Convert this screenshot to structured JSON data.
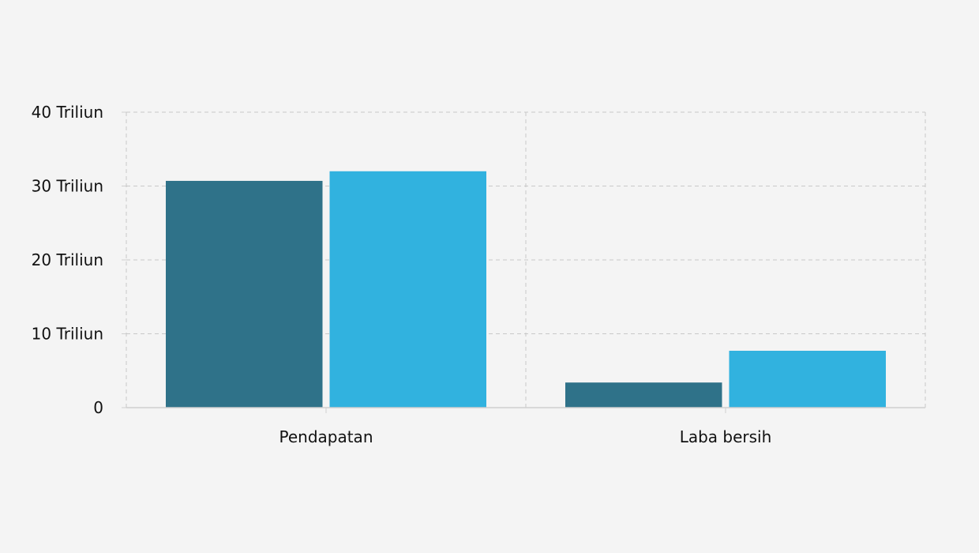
{
  "chart_data": {
    "type": "bar",
    "categories": [
      "Pendapatan",
      "Laba bersih"
    ],
    "series": [
      {
        "values": [
          30.7,
          3.4
        ],
        "color": "#2f7289"
      },
      {
        "values": [
          32.0,
          7.7
        ],
        "color": "#31b2df"
      }
    ],
    "ylim": [
      0,
      40
    ],
    "yticks": [
      {
        "value": 0,
        "label": "0"
      },
      {
        "value": 10,
        "label": "10 Triliun"
      },
      {
        "value": 20,
        "label": "20 Triliun"
      },
      {
        "value": 30,
        "label": "30 Triliun"
      },
      {
        "value": 40,
        "label": "40 Triliun"
      }
    ],
    "grid": true,
    "legend": "none",
    "title": "",
    "xlabel": "",
    "ylabel": ""
  },
  "colors": {
    "background": "#f4f4f4",
    "grid": "#c8c8c8",
    "axis": "#cfcfcf",
    "text": "#111111"
  }
}
